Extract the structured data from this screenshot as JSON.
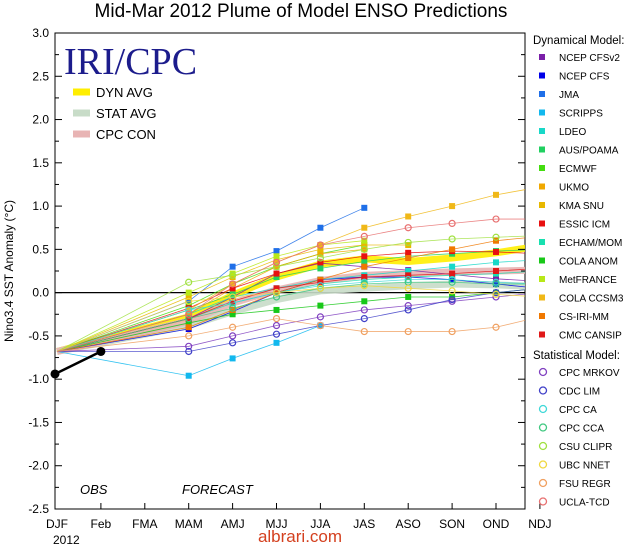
{
  "chart_data": {
    "type": "line",
    "title": "Mid-Mar 2012 Plume of Model ENSO Predictions",
    "ylabel": "Nino3.4 SST Anomaly (°C)",
    "ylim": [
      -2.5,
      3.0
    ],
    "yticks": [
      "3.0",
      "2.5",
      "2.0",
      "1.5",
      "1.0",
      "0.5",
      "0.0",
      "-0.5",
      "-1.0",
      "-1.5",
      "-2.0",
      "-2.5"
    ],
    "categories": [
      "DJF",
      "Feb",
      "FMA",
      "MAM",
      "AMJ",
      "MJJ",
      "JJA",
      "JAS",
      "ASO",
      "SON",
      "OND",
      "NDJ"
    ],
    "year_label": "2012",
    "logo": "IRI/CPC",
    "obs_label": "OBS",
    "forecast_label": "FORECAST",
    "watermark": "albrari.com",
    "observed": [
      -0.94,
      -0.68
    ],
    "averages": [
      {
        "name": "DYN AVG",
        "color": "#ffee00",
        "values": [
          -0.68,
          null,
          null,
          -0.28,
          -0.03,
          0.18,
          0.33,
          0.39,
          0.36,
          0.4,
          0.46,
          0.54
        ]
      },
      {
        "name": "STAT AVG",
        "color": "#c8dcc8",
        "values": [
          -0.68,
          null,
          null,
          -0.38,
          -0.22,
          -0.08,
          0.02,
          0.05,
          0.08,
          0.1,
          0.09,
          0.07
        ]
      },
      {
        "name": "CPC CON",
        "color": "#e8b4b4",
        "values": [
          -0.68,
          null,
          null,
          -0.33,
          -0.12,
          0.03,
          0.14,
          0.2,
          0.22,
          0.24,
          0.25,
          0.26
        ]
      }
    ],
    "dynamical_header": "Dynamical Model:",
    "statistical_header": "Statistical Model:",
    "series": [
      {
        "name": "NCEP CFSv2",
        "group": "dyn",
        "color": "#7a1fa8",
        "values": [
          -0.68,
          null,
          null,
          -0.3,
          -0.05,
          0.22,
          0.34,
          0.3,
          0.26,
          0.21,
          0.16,
          0.13
        ]
      },
      {
        "name": "NCEP CFS",
        "group": "dyn",
        "color": "#0000e8",
        "values": [
          -0.68,
          null,
          null,
          -0.42,
          -0.22,
          0.0,
          0.15,
          0.18,
          0.18,
          0.15,
          0.1,
          0.05
        ]
      },
      {
        "name": "JMA",
        "group": "dyn",
        "color": "#1f6fe8",
        "values": [
          -0.68,
          null,
          null,
          -0.1,
          0.3,
          0.48,
          0.75,
          0.98,
          null,
          null,
          null,
          null
        ]
      },
      {
        "name": "SCRIPPS",
        "group": "dyn",
        "color": "#12b8ee",
        "values": [
          -0.68,
          null,
          null,
          -0.96,
          -0.76,
          -0.58,
          -0.38,
          null,
          null,
          null,
          null,
          null
        ]
      },
      {
        "name": "LDEO",
        "group": "dyn",
        "color": "#18d8c8",
        "values": [
          -0.68,
          null,
          null,
          -0.25,
          -0.05,
          0.05,
          0.15,
          0.2,
          0.25,
          0.3,
          0.35,
          0.38
        ]
      },
      {
        "name": "AUS/POAMA",
        "group": "dyn",
        "color": "#20d060",
        "values": [
          -0.68,
          null,
          null,
          -0.2,
          -0.02,
          0.18,
          0.28,
          0.36,
          0.42,
          0.45,
          0.48,
          0.5
        ]
      },
      {
        "name": "ECMWF",
        "group": "dyn",
        "color": "#44dd10",
        "values": [
          -0.68,
          null,
          null,
          -0.15,
          0.1,
          0.3,
          0.45,
          0.55,
          null,
          null,
          null,
          null
        ]
      },
      {
        "name": "UKMO",
        "group": "dyn",
        "color": "#f0a800",
        "values": [
          -0.68,
          null,
          null,
          -0.25,
          0.05,
          0.3,
          0.45,
          0.5,
          null,
          null,
          null,
          null
        ]
      },
      {
        "name": "KMA SNU",
        "group": "dyn",
        "color": "#e8b800",
        "values": [
          -0.68,
          null,
          null,
          -0.05,
          0.18,
          0.38,
          0.5,
          0.55,
          0.55,
          null,
          null,
          null
        ]
      },
      {
        "name": "ESSIC ICM",
        "group": "dyn",
        "color": "#e81010",
        "values": [
          -0.68,
          null,
          null,
          -0.18,
          0.05,
          0.22,
          0.35,
          0.42,
          0.46,
          0.48,
          0.47,
          0.45
        ]
      },
      {
        "name": "ECHAM/MOM",
        "group": "dyn",
        "color": "#18e0b0",
        "values": [
          -0.68,
          null,
          null,
          -0.3,
          -0.12,
          0.0,
          0.1,
          0.15,
          0.18,
          0.2,
          0.22,
          0.25
        ]
      },
      {
        "name": "COLA ANOM",
        "group": "dyn",
        "color": "#18c818",
        "values": [
          -0.68,
          null,
          null,
          -0.35,
          -0.25,
          -0.2,
          -0.15,
          -0.1,
          -0.05,
          -0.05,
          0.0,
          0.05
        ]
      },
      {
        "name": "MetFRANCE",
        "group": "dyn",
        "color": "#b8e818",
        "values": [
          -0.68,
          null,
          null,
          0.0,
          0.22,
          0.42,
          0.55,
          0.6,
          null,
          null,
          null,
          null
        ]
      },
      {
        "name": "COLA CCSM3",
        "group": "dyn",
        "color": "#f0b818",
        "values": [
          -0.68,
          null,
          null,
          -0.2,
          0.1,
          0.35,
          0.55,
          0.75,
          0.88,
          1.0,
          1.13,
          1.22
        ]
      },
      {
        "name": "CS-IRI-MM",
        "group": "dyn",
        "color": "#f07800",
        "values": [
          -0.68,
          null,
          null,
          -0.4,
          -0.2,
          0.0,
          0.15,
          0.3,
          0.4,
          0.5,
          0.6,
          0.65
        ]
      },
      {
        "name": "CMC CANSIP",
        "group": "dyn",
        "color": "#e01818",
        "values": [
          -0.68,
          null,
          null,
          -0.3,
          -0.1,
          0.05,
          0.12,
          0.18,
          0.2,
          0.22,
          0.25,
          0.28
        ]
      },
      {
        "name": "CPC MRKOV",
        "group": "stat",
        "color": "#8040c0",
        "values": [
          -0.68,
          null,
          null,
          -0.62,
          -0.5,
          -0.38,
          -0.28,
          -0.2,
          -0.15,
          -0.1,
          -0.05,
          0.0
        ]
      },
      {
        "name": "CDC LIM",
        "group": "stat",
        "color": "#4040c8",
        "values": [
          -0.68,
          null,
          null,
          -0.68,
          -0.58,
          -0.48,
          -0.38,
          -0.3,
          -0.2,
          -0.08,
          0.0,
          0.05
        ]
      },
      {
        "name": "CPC CA",
        "group": "stat",
        "color": "#40d8d8",
        "values": [
          -0.68,
          null,
          null,
          -0.2,
          -0.12,
          0.0,
          0.08,
          0.12,
          0.15,
          0.15,
          0.12,
          0.1
        ]
      },
      {
        "name": "CPC CCA",
        "group": "stat",
        "color": "#40c880",
        "values": [
          -0.68,
          null,
          null,
          -0.3,
          -0.18,
          -0.05,
          0.05,
          0.1,
          0.12,
          0.12,
          0.1,
          0.1
        ]
      },
      {
        "name": "CSU CLIPR",
        "group": "stat",
        "color": "#a0e040",
        "values": [
          -0.68,
          null,
          null,
          0.12,
          0.2,
          0.3,
          0.4,
          0.5,
          0.58,
          0.62,
          0.64,
          0.66
        ]
      },
      {
        "name": "UBC NNET",
        "group": "stat",
        "color": "#f0d840",
        "values": [
          -0.68,
          null,
          null,
          -0.1,
          -0.05,
          0.0,
          0.05,
          0.08,
          0.05,
          0.02,
          -0.02,
          -0.05
        ]
      },
      {
        "name": "FSU REGR",
        "group": "stat",
        "color": "#f0a060",
        "values": [
          -0.68,
          null,
          null,
          -0.5,
          -0.4,
          -0.3,
          -0.38,
          -0.45,
          -0.45,
          -0.45,
          -0.4,
          -0.28
        ]
      },
      {
        "name": "UCLA-TCD",
        "group": "stat",
        "color": "#e87070",
        "values": [
          -0.68,
          null,
          null,
          -0.25,
          0.1,
          0.35,
          0.55,
          0.65,
          0.75,
          0.8,
          0.85,
          0.85
        ]
      }
    ]
  }
}
